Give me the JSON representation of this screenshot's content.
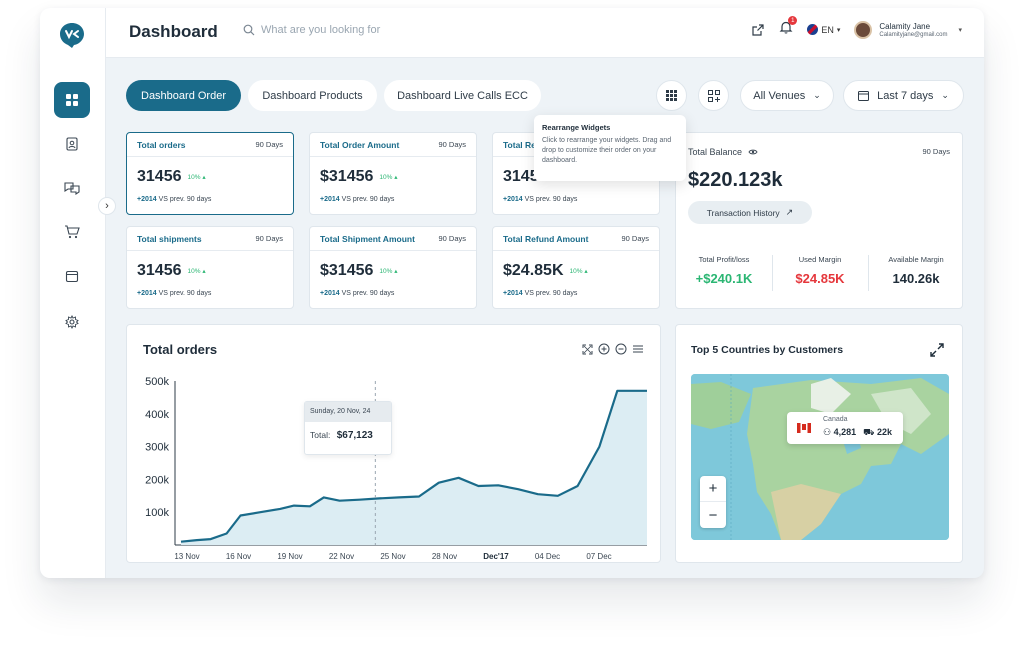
{
  "header": {
    "title": "Dashboard",
    "search_placeholder": "What are you looking for",
    "notification_count": "1",
    "language": "EN",
    "user_name": "Calamity Jane",
    "user_email": "Calamityjane@gmail.com"
  },
  "tabs": [
    {
      "label": "Dashboard Order",
      "active": true
    },
    {
      "label": "Dashboard Products",
      "active": false
    },
    {
      "label": "Dashboard Live Calls ECC",
      "active": false
    }
  ],
  "filters": {
    "venue": "All Venues",
    "date_range": "Last 7 days"
  },
  "tooltip": {
    "title": "Rearrange Widgets",
    "text": "Click to rearrange your widgets. Drag and drop to customize their order on your dashboard."
  },
  "stats": [
    {
      "label": "Total orders",
      "period": "90 Days",
      "value": "31456",
      "change": "10%",
      "delta": "+2014",
      "foot": "VS prev. 90 days"
    },
    {
      "label": "Total Order Amount",
      "period": "90 Days",
      "value": "$31456",
      "change": "10%",
      "delta": "+2014",
      "foot": "VS prev. 90 days"
    },
    {
      "label": "Total Re",
      "period": "",
      "value": "3145",
      "change": "",
      "delta": "+2014",
      "foot": "VS prev. 90 days"
    },
    {
      "label": "Total shipments",
      "period": "90 Days",
      "value": "31456",
      "change": "10%",
      "delta": "+2014",
      "foot": "VS prev. 90 days"
    },
    {
      "label": "Total Shipment Amount",
      "period": "90 Days",
      "value": "$31456",
      "change": "10%",
      "delta": "+2014",
      "foot": "VS prev. 90 days"
    },
    {
      "label": "Total Refund Amount",
      "period": "90 Days",
      "value": "$24.85K",
      "change": "10%",
      "delta": "+2014",
      "foot": "VS prev. 90 days"
    }
  ],
  "balance": {
    "label": "Total Balance",
    "period": "90 Days",
    "value": "$220.123k",
    "history_button": "Transaction History",
    "metrics": [
      {
        "label": "Total Profit/loss",
        "value": "+$240.1K",
        "color": "#2bb673"
      },
      {
        "label": "Used Margin",
        "value": "$24.85K",
        "color": "#e5373c"
      },
      {
        "label": "Available Margin",
        "value": "140.26k",
        "color": "#1f2d3a"
      }
    ]
  },
  "orders_chart": {
    "title": "Total orders",
    "hover_date": "Sunday, 20 Nov, 24",
    "hover_label": "Total:",
    "hover_value": "$67,123"
  },
  "chart_data": {
    "type": "area",
    "title": "Total orders",
    "x_ticks": [
      "13 Nov",
      "16 Nov",
      "19 Nov",
      "22 Nov",
      "25 Nov",
      "28 Nov",
      "Dec'17",
      "04 Dec",
      "07 Dec"
    ],
    "y_ticks": [
      "500k",
      "400k",
      "300k",
      "200k",
      "100k"
    ],
    "ylim": [
      0,
      500000
    ],
    "x_index": [
      0,
      0.8,
      1.5,
      2.3,
      3,
      4,
      5,
      5.7,
      6.5,
      7.2,
      8,
      9,
      10,
      11,
      12,
      13,
      14,
      15,
      16,
      17,
      18,
      19,
      20,
      21.1,
      22,
      22.7,
      23.5
    ],
    "values": [
      10000,
      15000,
      18000,
      35000,
      90000,
      100000,
      110000,
      120000,
      118000,
      145000,
      135000,
      138000,
      142000,
      145000,
      148000,
      190000,
      205000,
      180000,
      182000,
      170000,
      155000,
      150000,
      180000,
      300000,
      470000,
      470000,
      470000
    ]
  },
  "map": {
    "title": "Top 5 Countries by Customers",
    "country": "Canada",
    "customers": "4,281",
    "orders": "22k"
  },
  "colors": {
    "accent": "#1a6b8a",
    "positive": "#2bb673",
    "negative": "#e5373c"
  }
}
